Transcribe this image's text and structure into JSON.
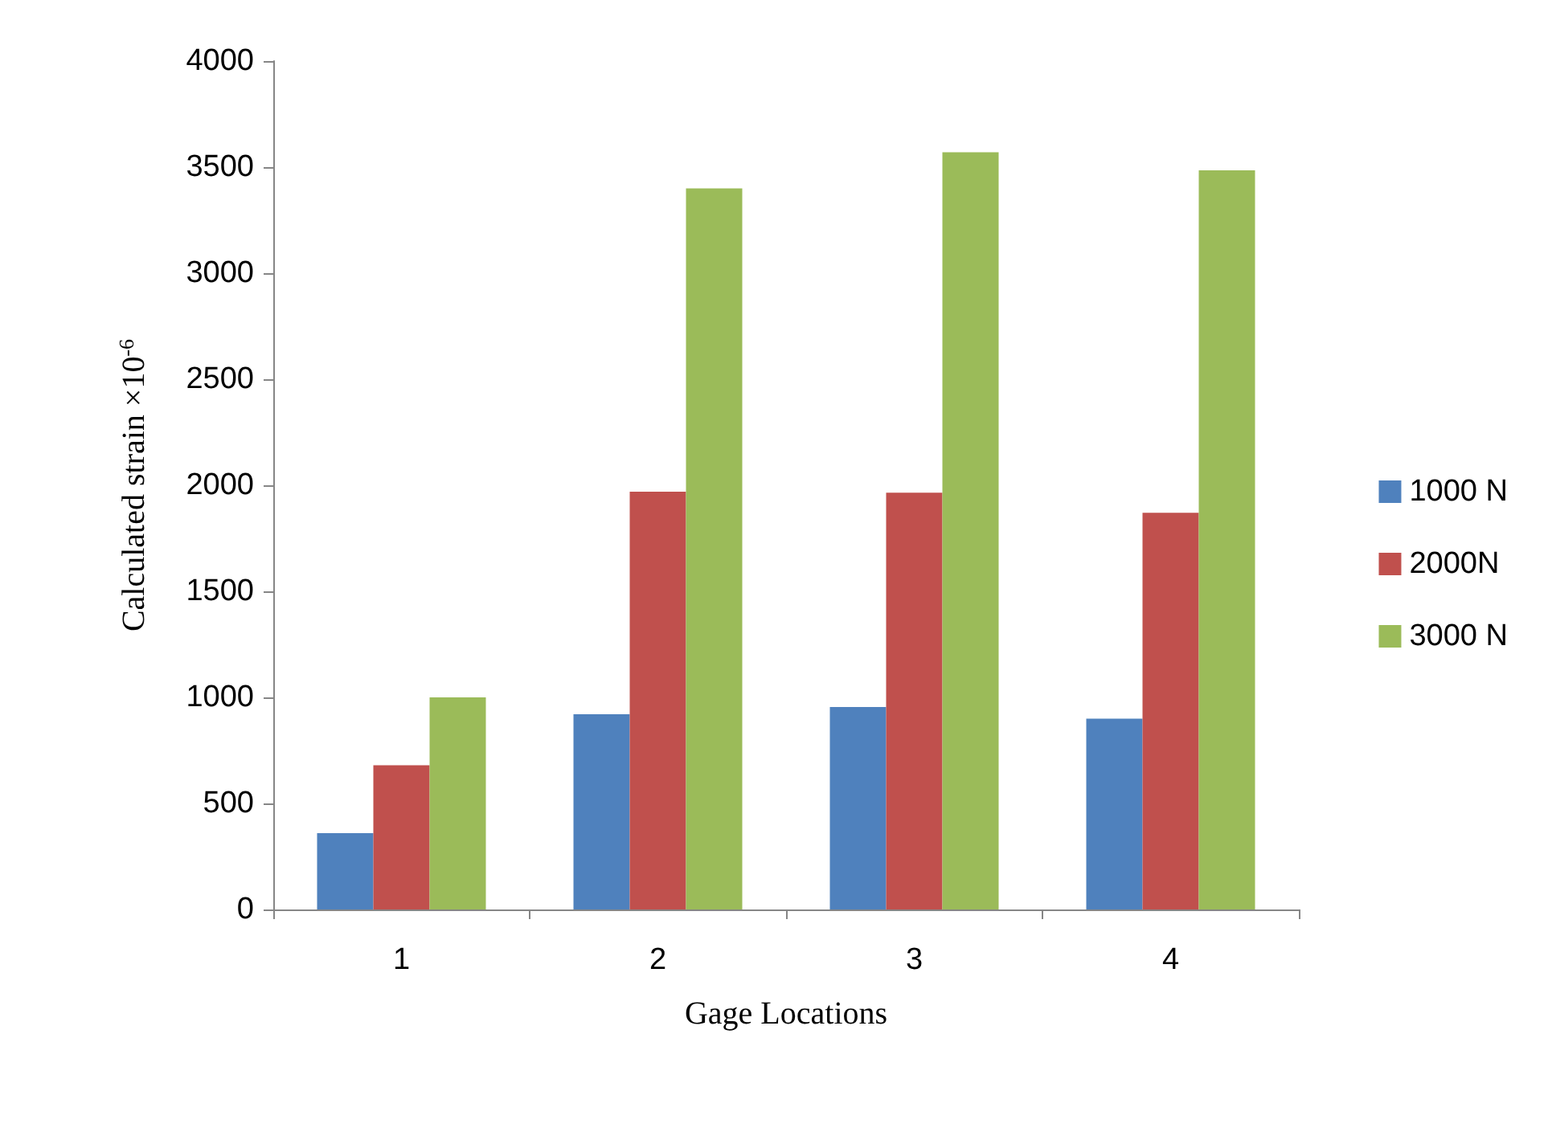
{
  "chart_data": {
    "type": "bar",
    "xlabel": "Gage Locations",
    "ylabel": "Calculated strain ×10$^{-6}$",
    "categories": [
      "1",
      "2",
      "3",
      "4"
    ],
    "series": [
      {
        "name": "1000 N",
        "color": "#4f81bd",
        "values": [
          360,
          920,
          955,
          900
        ]
      },
      {
        "name": "2000N",
        "color": "#c0504d",
        "values": [
          680,
          1970,
          1965,
          1870
        ]
      },
      {
        "name": "3000 N",
        "color": "#9bbb59",
        "values": [
          1000,
          3400,
          3570,
          3485
        ]
      }
    ],
    "ylim": [
      0,
      4000
    ],
    "yticks": [
      0,
      500,
      1000,
      1500,
      2000,
      2500,
      3000,
      3500,
      4000
    ],
    "grid": false,
    "legend": "right"
  }
}
